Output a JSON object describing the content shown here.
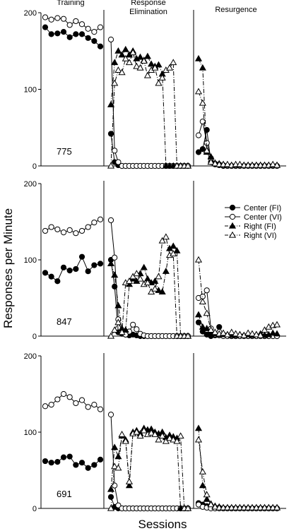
{
  "chart_data": {
    "type": "line",
    "ylabel": "Responses per Minute",
    "xlabel": "Sessions",
    "phase_labels": [
      {
        "text": "Training"
      },
      {
        "text": "Response\nElimination"
      },
      {
        "text": "Resurgence"
      }
    ],
    "legend": {
      "placement": "right, middle panel",
      "entries": [
        {
          "label": "Center (FI)",
          "marker": "filled-circle",
          "line": "solid"
        },
        {
          "label": "Center (VI)",
          "marker": "open-circle",
          "line": "solid"
        },
        {
          "label": "Right (FI)",
          "marker": "filled-triangle",
          "line": "dashdot"
        },
        {
          "label": "Right (VI)",
          "marker": "open-triangle",
          "line": "dashdot"
        }
      ]
    },
    "ylim": [
      0,
      200
    ],
    "yticks": [
      0,
      100,
      200
    ],
    "grid": false,
    "session_counts": {
      "training": 10,
      "elimination": 22,
      "resurgence": 20
    },
    "panels": [
      {
        "subject": "775",
        "series": [
          {
            "key": "center_fi",
            "training": [
              181,
              172,
              173,
              175,
              168,
              172,
              172,
              167,
              163,
              156
            ],
            "elimination": [
              42,
              5,
              1,
              0,
              0,
              0,
              0,
              0,
              0,
              0,
              0,
              0,
              0,
              0,
              0,
              0,
              0,
              0,
              0,
              0,
              0,
              0
            ],
            "resurgence": [
              18,
              22,
              47,
              5,
              2,
              1,
              0,
              0,
              0,
              0,
              0,
              0,
              0,
              0,
              0,
              0,
              0,
              0,
              0,
              0
            ]
          },
          {
            "key": "center_vi",
            "training": [
              194,
              191,
              193,
              192,
              184,
              189,
              185,
              179,
              175,
              181
            ],
            "elimination": [
              165,
              20,
              5,
              0,
              0,
              0,
              0,
              0,
              0,
              0,
              0,
              0,
              0,
              0,
              0,
              0,
              0,
              0,
              0,
              0,
              0,
              0
            ],
            "resurgence": [
              40,
              58,
              30,
              10,
              3,
              2,
              1,
              0,
              0,
              0,
              0,
              0,
              0,
              0,
              0,
              0,
              0,
              0,
              0,
              0
            ]
          },
          {
            "key": "right_fi",
            "elimination": [
              80,
              135,
              150,
              145,
              152,
              145,
              150,
              140,
              142,
              138,
              143,
              133,
              130,
              132,
              120,
              0,
              0,
              0,
              0,
              0,
              0,
              0
            ],
            "resurgence": [
              140,
              128,
              18,
              12,
              4,
              3,
              2,
              1,
              1,
              1,
              1,
              1,
              1,
              1,
              1,
              1,
              1,
              1,
              1,
              1
            ]
          },
          {
            "key": "right_vi",
            "elimination": [
              0,
              108,
              125,
              122,
              140,
              135,
              148,
              130,
              128,
              137,
              118,
              125,
              128,
              108,
              115,
              125,
              128,
              135,
              0,
              0,
              0,
              0
            ],
            "resurgence": [
              97,
              82,
              20,
              5,
              3,
              2,
              2,
              2,
              1,
              2,
              2,
              1,
              1,
              1,
              1,
              1,
              1,
              1,
              2,
              1
            ]
          }
        ]
      },
      {
        "subject": "847",
        "series": [
          {
            "key": "center_fi",
            "training": [
              83,
              78,
              72,
              90,
              86,
              88,
              104,
              85,
              93,
              95
            ],
            "elimination": [
              100,
              65,
              5,
              3,
              2,
              1,
              2,
              1,
              0,
              0,
              0,
              0,
              0,
              0,
              0,
              0,
              0,
              0,
              0,
              0,
              0,
              0
            ],
            "resurgence": [
              18,
              6,
              2,
              0,
              1,
              12,
              2,
              1,
              0,
              0,
              0,
              0,
              0,
              0,
              0,
              0,
              0,
              0,
              0,
              0
            ]
          },
          {
            "key": "center_vi",
            "training": [
              138,
              143,
              140,
              136,
              139,
              135,
              138,
              143,
              149,
              153
            ],
            "elimination": [
              152,
              103,
              22,
              5,
              2,
              6,
              15,
              9,
              3,
              1,
              0,
              0,
              0,
              0,
              0,
              0,
              0,
              0,
              0,
              0,
              0,
              0
            ],
            "resurgence": [
              50,
              52,
              60,
              10,
              2,
              1,
              0,
              0,
              0,
              0,
              0,
              0,
              0,
              0,
              0,
              0,
              0,
              0,
              0,
              0
            ]
          },
          {
            "key": "right_fi",
            "elimination": [
              95,
              80,
              40,
              10,
              8,
              68,
              75,
              72,
              82,
              90,
              75,
              70,
              72,
              60,
              58,
              85,
              115,
              118,
              112,
              0,
              0,
              0
            ],
            "resurgence": [
              28,
              12,
              10,
              6,
              3,
              2,
              2,
              2,
              1,
              1,
              2,
              1,
              2,
              1,
              2,
              3,
              1,
              2,
              4,
              3
            ]
          },
          {
            "key": "right_vi",
            "elimination": [
              0,
              8,
              18,
              5,
              70,
              72,
              78,
              82,
              75,
              68,
              70,
              58,
              62,
              78,
              125,
              130,
              106,
              108,
              0,
              0,
              0,
              0
            ],
            "resurgence": [
              100,
              45,
              30,
              8,
              5,
              3,
              4,
              2,
              5,
              3,
              2,
              1,
              4,
              3,
              2,
              1,
              8,
              12,
              14,
              15
            ]
          }
        ]
      },
      {
        "subject": "691",
        "series": [
          {
            "key": "center_fi",
            "training": [
              62,
              60,
              61,
              67,
              68,
              57,
              60,
              53,
              57,
              64
            ],
            "elimination": [
              15,
              2,
              0,
              0,
              0,
              0,
              0,
              0,
              0,
              0,
              0,
              0,
              0,
              0,
              0,
              0,
              0,
              0,
              0,
              0,
              0,
              0
            ],
            "resurgence": [
              7,
              5,
              3,
              1,
              1,
              1,
              0,
              0,
              0,
              0,
              0,
              0,
              0,
              0,
              0,
              0,
              0,
              0,
              0,
              0
            ]
          },
          {
            "key": "center_vi",
            "training": [
              134,
              136,
              143,
              150,
              146,
              138,
              142,
              133,
              136,
              130
            ],
            "elimination": [
              123,
              30,
              4,
              0,
              0,
              0,
              0,
              0,
              0,
              0,
              0,
              0,
              0,
              0,
              0,
              0,
              0,
              0,
              0,
              0,
              0,
              0
            ],
            "resurgence": [
              5,
              2,
              1,
              0,
              0,
              0,
              0,
              0,
              0,
              0,
              0,
              0,
              0,
              0,
              0,
              0,
              0,
              0,
              0,
              0
            ]
          },
          {
            "key": "right_fi",
            "elimination": [
              25,
              80,
              68,
              95,
              90,
              30,
              100,
              102,
              98,
              105,
              103,
              104,
              100,
              98,
              100,
              93,
              96,
              94,
              92,
              0,
              0,
              0
            ],
            "resurgence": [
              105,
              30,
              12,
              6,
              3,
              2,
              1,
              1,
              1,
              1,
              1,
              1,
              1,
              1,
              1,
              1,
              1,
              1,
              1,
              1
            ]
          },
          {
            "key": "right_vi",
            "elimination": [
              0,
              55,
              53,
              97,
              88,
              35,
              98,
              100,
              95,
              102,
              97,
              99,
              97,
              90,
              95,
              88,
              92,
              90,
              88,
              95,
              0,
              0
            ],
            "resurgence": [
              90,
              48,
              18,
              5,
              2,
              1,
              1,
              1,
              1,
              1,
              1,
              1,
              1,
              1,
              1,
              1,
              1,
              1,
              1,
              1
            ]
          }
        ]
      }
    ]
  }
}
